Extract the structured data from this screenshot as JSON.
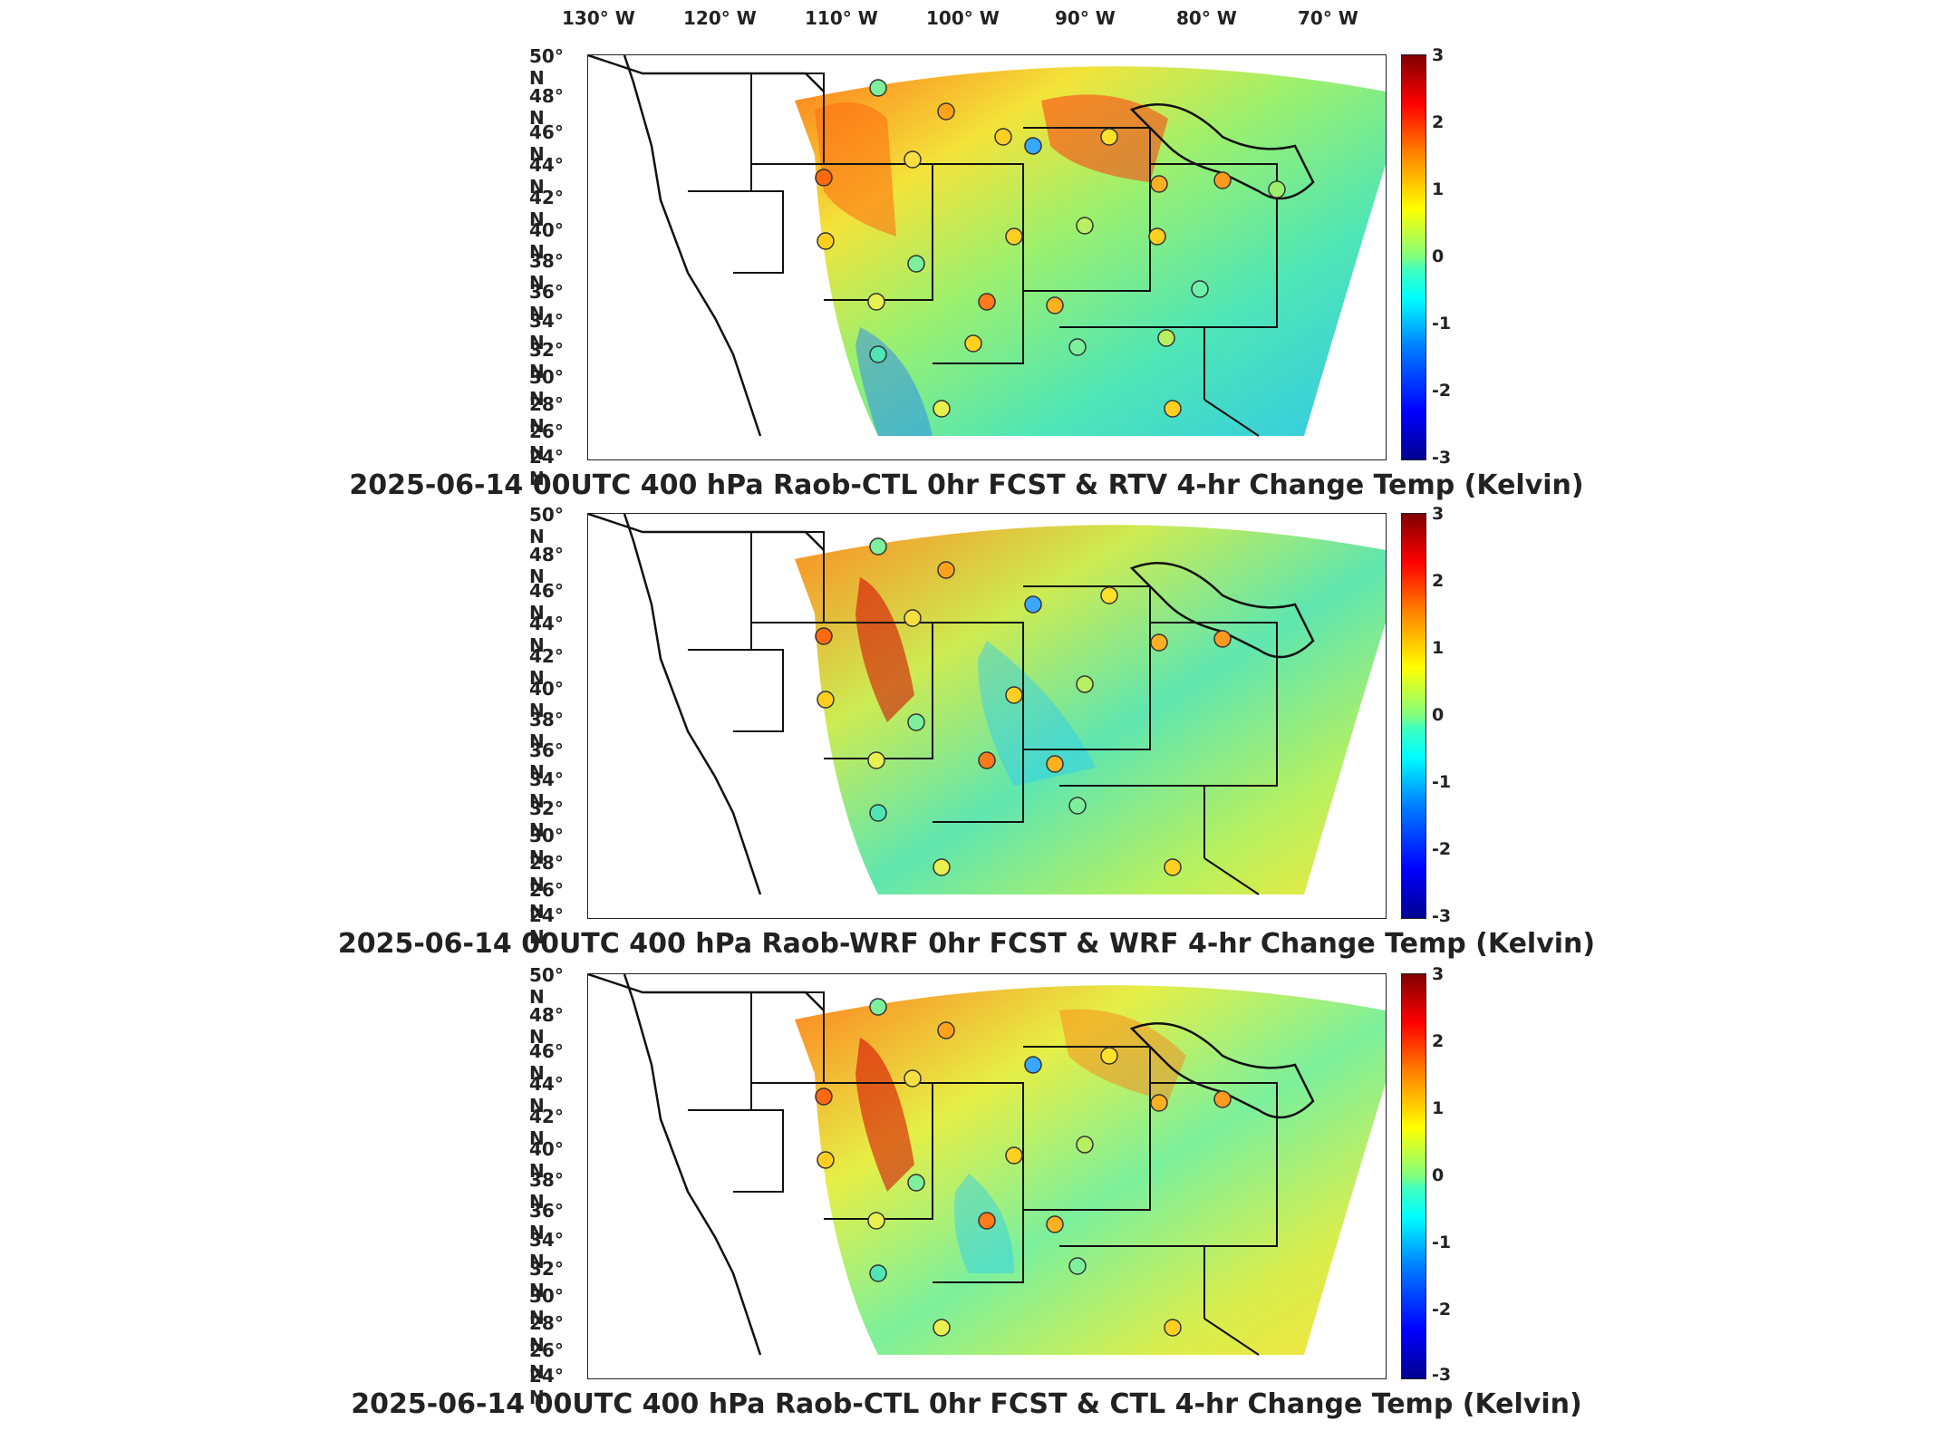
{
  "longitude_labels": [
    "130° W",
    "120° W",
    "110° W",
    "100° W",
    "90° W",
    "80° W",
    "70° W"
  ],
  "latitude_labels": [
    "50° N",
    "48° N",
    "46° N",
    "44° N",
    "42° N",
    "40° N",
    "38° N",
    "36° N",
    "34° N",
    "32° N",
    "30° N",
    "28° N",
    "26° N",
    "24° N"
  ],
  "colorbar": {
    "ticks": [
      "3",
      "2",
      "1",
      "0",
      "-1",
      "-2",
      "-3"
    ],
    "min": -3,
    "max": 3,
    "colormap": "jet"
  },
  "panels": [
    {
      "caption": "2025-06-14 00UTC 400 hPa Raob-CTL 0hr FCST & RTV 4-hr Change Temp (Kelvin)"
    },
    {
      "caption": "2025-06-14 00UTC 400 hPa Raob-WRF 0hr FCST & WRF 4-hr Change Temp (Kelvin)"
    },
    {
      "caption": "2025-06-14 00UTC 400 hPa Raob-CTL 0hr FCST & CTL 4-hr Change Temp (Kelvin)"
    }
  ]
}
